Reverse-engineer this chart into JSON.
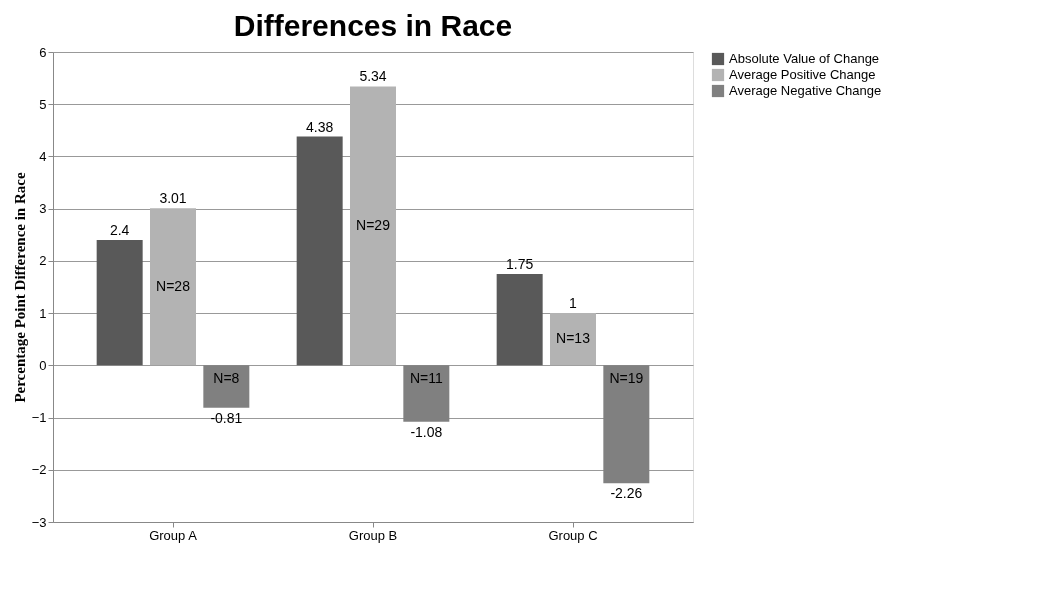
{
  "chart_data": {
    "type": "bar",
    "title": "Differences in Race",
    "ylabel": "Percentage Point Difference in Race",
    "categories": [
      "Group A",
      "Group B",
      "Group C"
    ],
    "series": [
      {
        "name": "Absolute Value of Change",
        "color": "#595959",
        "values": [
          2.4,
          4.38,
          1.75
        ]
      },
      {
        "name": "Average Positive Change",
        "color": "#b3b3b3",
        "values": [
          3.01,
          5.34,
          1
        ]
      },
      {
        "name": "Average Negative Change",
        "color": "#808080",
        "values": [
          -0.81,
          -1.08,
          -2.26
        ]
      }
    ],
    "ylim": [
      -3,
      6
    ],
    "yticks": [
      -3,
      -2,
      -1,
      0,
      1,
      2,
      3,
      4,
      5,
      6
    ],
    "grid": "y",
    "legend": "right",
    "data_labels": true,
    "annotations": [
      "N=28",
      "N=8",
      "N=29",
      "N=11",
      "N=13",
      "N=19"
    ]
  }
}
